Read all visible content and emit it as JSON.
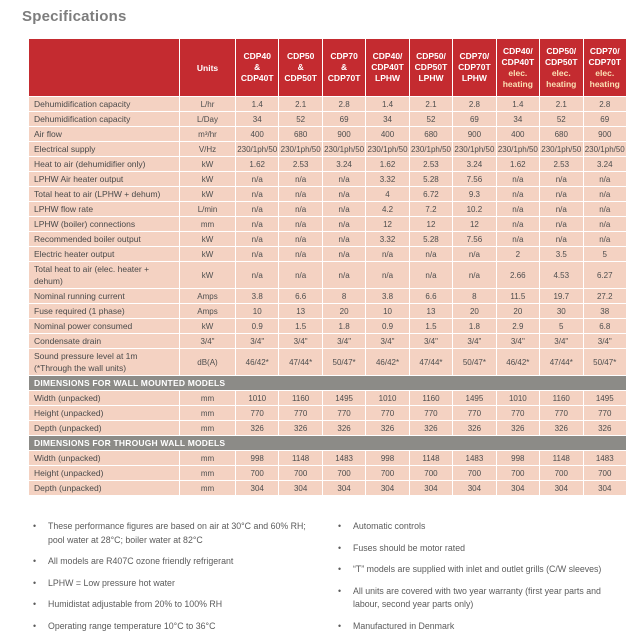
{
  "page_title": "Specifications",
  "colors": {
    "header_red": "#c42b30",
    "row_salmon": "#f4d2c2",
    "section_band_gray": "#8c8b87",
    "elec_heading_cream": "#fbe0b4",
    "title_gray": "#7d7d7d",
    "body_text": "#4e4e4e"
  },
  "table": {
    "units_label": "Units",
    "columns": [
      {
        "lines": [
          "CDP40",
          "&",
          "CDP40T"
        ],
        "sub_lines": []
      },
      {
        "lines": [
          "CDP50",
          "&",
          "CDP50T"
        ],
        "sub_lines": []
      },
      {
        "lines": [
          "CDP70",
          "&",
          "CDP70T"
        ],
        "sub_lines": []
      },
      {
        "lines": [
          "CDP40/",
          "CDP40T",
          "LPHW"
        ],
        "sub_lines": []
      },
      {
        "lines": [
          "CDP50/",
          "CDP50T",
          "LPHW"
        ],
        "sub_lines": []
      },
      {
        "lines": [
          "CDP70/",
          "CDP70T",
          "LPHW"
        ],
        "sub_lines": []
      },
      {
        "lines": [
          "CDP40/",
          "CDP40T"
        ],
        "sub_lines": [
          "elec.",
          "heating"
        ]
      },
      {
        "lines": [
          "CDP50/",
          "CDP50T"
        ],
        "sub_lines": [
          "elec.",
          "heating"
        ]
      },
      {
        "lines": [
          "CDP70/",
          "CDP70T"
        ],
        "sub_lines": [
          "elec.",
          "heating"
        ]
      }
    ],
    "rows": [
      {
        "label": "Dehumidification capacity",
        "units": "L/hr",
        "values": [
          "1.4",
          "2.1",
          "2.8",
          "1.4",
          "2.1",
          "2.8",
          "1.4",
          "2.1",
          "2.8"
        ]
      },
      {
        "label": "Dehumidification capacity",
        "units": "L/Day",
        "values": [
          "34",
          "52",
          "69",
          "34",
          "52",
          "69",
          "34",
          "52",
          "69"
        ]
      },
      {
        "label": "Air flow",
        "units": "m³/hr",
        "values": [
          "400",
          "680",
          "900",
          "400",
          "680",
          "900",
          "400",
          "680",
          "900"
        ]
      },
      {
        "label": "Electrical supply",
        "units": "V/Hz",
        "values": [
          "230/1ph/50",
          "230/1ph/50",
          "230/1ph/50",
          "230/1ph/50",
          "230/1ph/50",
          "230/1ph/50",
          "230/1ph/50",
          "230/1ph/50",
          "230/1ph/50"
        ]
      },
      {
        "label": "Heat to air (dehumidifier only)",
        "units": "kW",
        "values": [
          "1.62",
          "2.53",
          "3.24",
          "1.62",
          "2.53",
          "3.24",
          "1.62",
          "2.53",
          "3.24"
        ]
      },
      {
        "label": "LPHW Air heater output",
        "units": "kW",
        "values": [
          "n/a",
          "n/a",
          "n/a",
          "3.32",
          "5.28",
          "7.56",
          "n/a",
          "n/a",
          "n/a"
        ]
      },
      {
        "label": "Total heat to air (LPHW + dehum)",
        "units": "kW",
        "values": [
          "n/a",
          "n/a",
          "n/a",
          "4",
          "6.72",
          "9.3",
          "n/a",
          "n/a",
          "n/a"
        ]
      },
      {
        "label": "LPHW flow rate",
        "units": "L/min",
        "values": [
          "n/a",
          "n/a",
          "n/a",
          "4.2",
          "7.2",
          "10.2",
          "n/a",
          "n/a",
          "n/a"
        ]
      },
      {
        "label": "LPHW (boiler) connections",
        "units": "mm",
        "values": [
          "n/a",
          "n/a",
          "n/a",
          "12",
          "12",
          "12",
          "n/a",
          "n/a",
          "n/a"
        ]
      },
      {
        "label": "Recommended boiler output",
        "units": "kW",
        "values": [
          "n/a",
          "n/a",
          "n/a",
          "3.32",
          "5.28",
          "7.56",
          "n/a",
          "n/a",
          "n/a"
        ]
      },
      {
        "label": "Electric heater output",
        "units": "kW",
        "values": [
          "n/a",
          "n/a",
          "n/a",
          "n/a",
          "n/a",
          "n/a",
          "2",
          "3.5",
          "5"
        ]
      },
      {
        "label": "Total heat to air (elec. heater + dehum)",
        "units": "kW",
        "values": [
          "n/a",
          "n/a",
          "n/a",
          "n/a",
          "n/a",
          "n/a",
          "2.66",
          "4.53",
          "6.27"
        ]
      },
      {
        "label": "Nominal running current",
        "units": "Amps",
        "values": [
          "3.8",
          "6.6",
          "8",
          "3.8",
          "6.6",
          "8",
          "11.5",
          "19.7",
          "27.2"
        ]
      },
      {
        "label": "Fuse required (1 phase)",
        "units": "Amps",
        "values": [
          "10",
          "13",
          "20",
          "10",
          "13",
          "20",
          "20",
          "30",
          "38"
        ]
      },
      {
        "label": "Nominal power consumed",
        "units": "kW",
        "values": [
          "0.9",
          "1.5",
          "1.8",
          "0.9",
          "1.5",
          "1.8",
          "2.9",
          "5",
          "6.8"
        ]
      },
      {
        "label": "Condensate drain",
        "units": "3/4\"",
        "values": [
          "3/4\"",
          "3/4\"",
          "3/4\"",
          "3/4\"",
          "3/4\"",
          "3/4\"",
          "3/4\"",
          "3/4\"",
          "3/4\""
        ]
      },
      {
        "label": "Sound pressure level at 1m",
        "label2": "(*Through the wall units)",
        "units": "dB(A)",
        "values": [
          "46/42*",
          "47/44*",
          "50/47*",
          "46/42*",
          "47/44*",
          "50/47*",
          "46/42*",
          "47/44*",
          "50/47*"
        ]
      }
    ],
    "sections": [
      {
        "title": "DIMENSIONS FOR WALL MOUNTED MODELS",
        "rows": [
          {
            "label": "Width (unpacked)",
            "units": "mm",
            "values": [
              "1010",
              "1160",
              "1495",
              "1010",
              "1160",
              "1495",
              "1010",
              "1160",
              "1495"
            ]
          },
          {
            "label": "Height (unpacked)",
            "units": "mm",
            "values": [
              "770",
              "770",
              "770",
              "770",
              "770",
              "770",
              "770",
              "770",
              "770"
            ]
          },
          {
            "label": "Depth (unpacked)",
            "units": "mm",
            "values": [
              "326",
              "326",
              "326",
              "326",
              "326",
              "326",
              "326",
              "326",
              "326"
            ]
          }
        ]
      },
      {
        "title": "DIMENSIONS FOR THROUGH WALL MODELS",
        "rows": [
          {
            "label": "Width (unpacked)",
            "units": "mm",
            "values": [
              "998",
              "1148",
              "1483",
              "998",
              "1148",
              "1483",
              "998",
              "1148",
              "1483"
            ]
          },
          {
            "label": "Height (unpacked)",
            "units": "mm",
            "values": [
              "700",
              "700",
              "700",
              "700",
              "700",
              "700",
              "700",
              "700",
              "700"
            ]
          },
          {
            "label": "Depth (unpacked)",
            "units": "mm",
            "values": [
              "304",
              "304",
              "304",
              "304",
              "304",
              "304",
              "304",
              "304",
              "304"
            ]
          }
        ]
      }
    ]
  },
  "notes_left": [
    "These performance figures are based on air at 30°C and 60% RH; pool water at 28°C; boiler water at 82°C",
    "All models are R407C ozone friendly refrigerant",
    "LPHW = Low pressure hot water",
    "Humidistat adjustable from 20% to 100% RH",
    "Operating range temperature 10°C to 36°C"
  ],
  "notes_right": [
    "Automatic controls",
    "Fuses should be motor rated",
    "“T” models are supplied with inlet and outlet grills (C/W sleeves)",
    "All units are covered with two year warranty (first year parts and labour, second year parts only)",
    "Manufactured in Denmark"
  ]
}
